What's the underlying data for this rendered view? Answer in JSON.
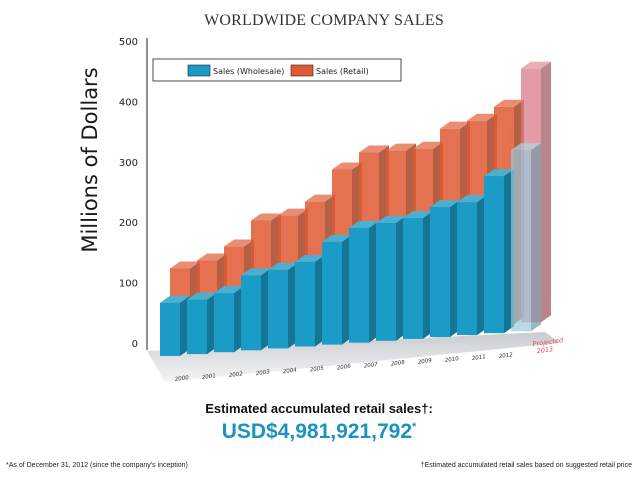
{
  "chart_data": {
    "type": "bar",
    "title": "WORLDWIDE COMPANY SALES",
    "ylabel": "Millions of Dollars",
    "ylim": [
      0,
      500
    ],
    "yticks": [
      "0",
      "100",
      "200",
      "300",
      "400",
      "500"
    ],
    "categories": [
      "2000",
      "2001",
      "2002",
      "2003",
      "2004",
      "2005",
      "2006",
      "2007",
      "2008",
      "2009",
      "2010",
      "2011",
      "2012",
      "Projected 2013"
    ],
    "series": [
      {
        "name": "Sales (Wholesale)",
        "values": [
          88,
          90,
          98,
          124,
          130,
          140,
          170,
          190,
          195,
          200,
          215,
          220,
          260,
          300
        ]
      },
      {
        "name": "Sales (Retail)",
        "values": [
          130,
          140,
          160,
          200,
          205,
          225,
          275,
          300,
          300,
          300,
          330,
          340,
          360,
          420
        ]
      }
    ],
    "legend": {
      "placement": "top"
    },
    "colors": {
      "wholesale": "#1b9cc6",
      "retail": "#e05a33",
      "projected": "#d97b88"
    }
  },
  "summary": {
    "label": "Estimated accumulated retail sales†:",
    "value": "USD$4,981,921,792",
    "value_mark": "*"
  },
  "footnotes": {
    "left": "*As of December 31, 2012 (since the company's inception)",
    "right": "†Estimated accumulated retail sales based on suggested retail price"
  }
}
